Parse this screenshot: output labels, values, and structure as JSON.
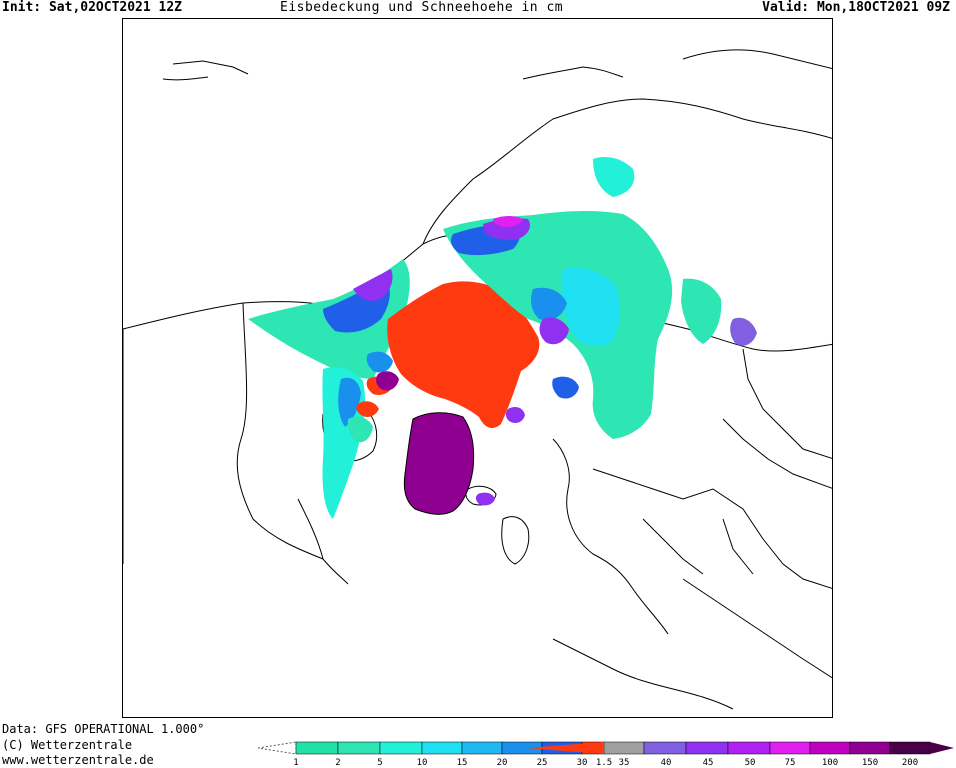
{
  "header": {
    "init": "Init: Sat,02OCT2021 12Z",
    "title": "Eisbedeckung und Schneehoehe in cm",
    "valid": "Valid: Mon,18OCT2021 09Z"
  },
  "footer": {
    "data_source": "Data: GFS OPERATIONAL 1.000°",
    "copyright": "(C) Wetterzentrale",
    "website": "www.wetterzentrale.de"
  },
  "legend": {
    "labels": [
      "1",
      "2",
      "5",
      "10",
      "15",
      "20",
      "25",
      "30",
      "1.5",
      "35",
      "40",
      "45",
      "50",
      "75",
      "100",
      "150",
      "200"
    ],
    "colors": {
      "snow_1": "#22e0a8",
      "snow_2": "#2ee6b4",
      "snow_5": "#22f0d8",
      "snow_10": "#1ee0f0",
      "snow_15": "#20b8f0",
      "snow_20": "#1a90ee",
      "snow_25": "#2060e8",
      "sea_ice": "#ff3a10",
      "snow_35": "#a0a0a0",
      "snow_40": "#8060e0",
      "snow_45": "#9030f0",
      "snow_50": "#b020f0",
      "snow_75": "#e020f0",
      "snow_100": "#c000c0",
      "snow_150": "#900090",
      "snow_200": "#4a0048"
    }
  }
}
